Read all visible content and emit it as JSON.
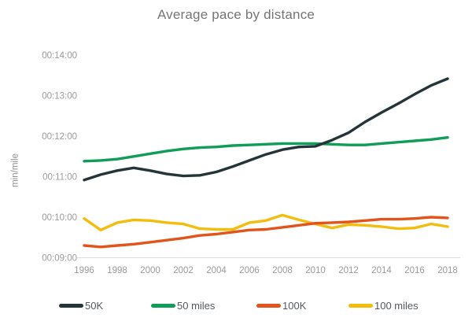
{
  "title": "Average pace by distance",
  "chart_data": {
    "type": "line",
    "title": "Average pace by distance",
    "xlabel": "",
    "ylabel": "min/mile",
    "grid": false,
    "legend_position": "bottom",
    "x": [
      1996,
      1997,
      1998,
      1999,
      2000,
      2001,
      2002,
      2003,
      2004,
      2005,
      2006,
      2007,
      2008,
      2009,
      2010,
      2011,
      2012,
      2013,
      2014,
      2015,
      2016,
      2017,
      2018
    ],
    "x_tick_values": [
      1996,
      1998,
      2000,
      2002,
      2004,
      2006,
      2008,
      2010,
      2012,
      2014,
      2016,
      2018
    ],
    "x_tick_labels": [
      "1996",
      "1998",
      "2000",
      "2002",
      "2004",
      "2006",
      "2008",
      "2010",
      "2012",
      "2014",
      "2016",
      "2018"
    ],
    "y_tick_values": [
      9,
      10,
      11,
      12,
      13,
      14
    ],
    "y_tick_labels": [
      "00:09:00",
      "00:10:00",
      "00:11:00",
      "00:12:00",
      "00:13:00",
      "00:14:00"
    ],
    "ylim_minutes": [
      9,
      14
    ],
    "value_format": "pace mm:ss per mile",
    "series": [
      {
        "id": "50k",
        "name": "50K",
        "color": "#243539",
        "values": [
          "10:55",
          "11:03",
          "11:09",
          "11:13",
          "11:09",
          "11:04",
          "11:01",
          "11:02",
          "11:07",
          "11:15",
          "11:24",
          "11:33",
          "11:40",
          "11:44",
          "11:45",
          "11:54",
          "12:05",
          "12:21",
          "12:35",
          "12:48",
          "13:02",
          "13:15",
          "13:25"
        ]
      },
      {
        "id": "50-miles",
        "name": "50 miles",
        "color": "#0f9d58",
        "values": [
          "11:23",
          "11:24",
          "11:26",
          "11:30",
          "11:34",
          "11:38",
          "11:41",
          "11:43",
          "11:44",
          "11:46",
          "11:47",
          "11:48",
          "11:49",
          "11:49",
          "11:49",
          "11:48",
          "11:47",
          "11:47",
          "11:49",
          "11:51",
          "11:53",
          "11:55",
          "11:58"
        ]
      },
      {
        "id": "100k",
        "name": "100K",
        "color": "#e2541b",
        "values": [
          "9:18",
          "9:16",
          "9:18",
          "9:20",
          "9:23",
          "9:26",
          "9:29",
          "9:33",
          "9:35",
          "9:38",
          "9:41",
          "9:42",
          "9:45",
          "9:48",
          "9:51",
          "9:52",
          "9:53",
          "9:55",
          "9:57",
          "9:57",
          "9:58",
          "10:00",
          "9:59"
        ]
      },
      {
        "id": "100-miles",
        "name": "100 miles",
        "color": "#f2bd0d",
        "values": [
          "9:58",
          "9:41",
          "9:52",
          "9:56",
          "9:55",
          "9:52",
          "9:50",
          "9:43",
          "9:42",
          "9:42",
          "9:52",
          "9:55",
          "10:03",
          "9:56",
          "9:50",
          "9:44",
          "9:49",
          "9:48",
          "9:46",
          "9:43",
          "9:44",
          "9:50",
          "9:46"
        ]
      }
    ]
  }
}
